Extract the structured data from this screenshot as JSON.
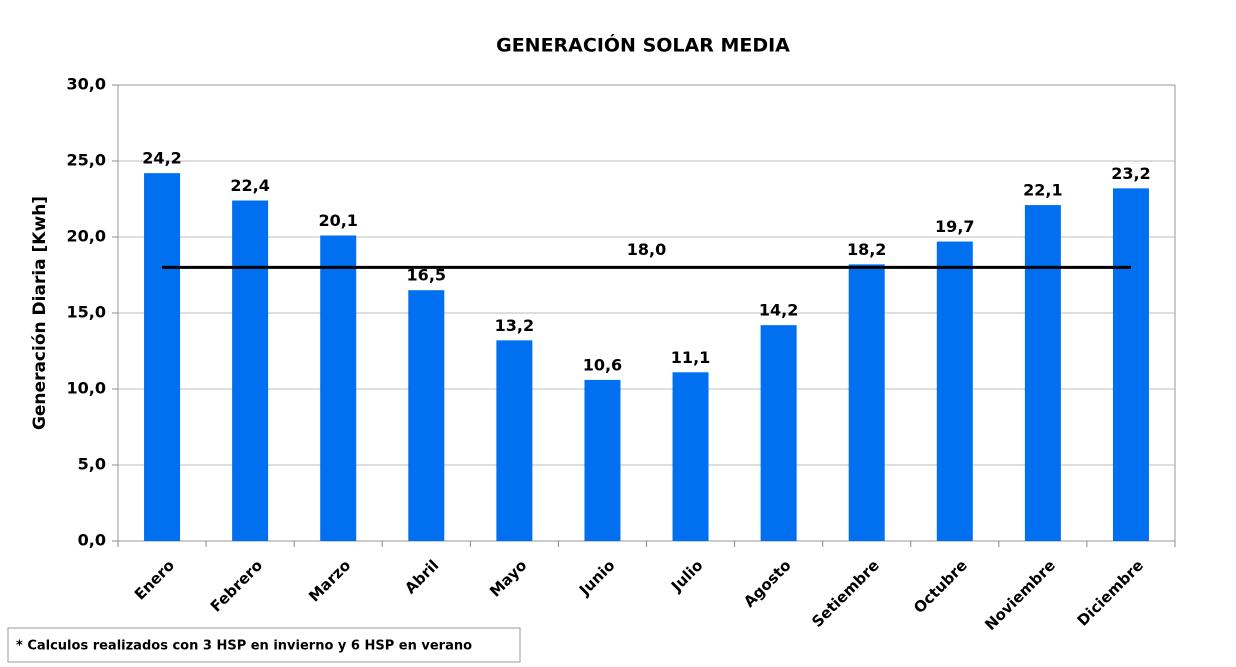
{
  "chart_data": {
    "type": "bar",
    "title": "GENERACIÓN SOLAR MEDIA",
    "y_label": "Generación Diaria [Kwh]",
    "categories": [
      "Enero",
      "Febrero",
      "Marzo",
      "Abril",
      "Mayo",
      "Junio",
      "Julio",
      "Agosto",
      "Setiembre",
      "Octubre",
      "Noviembre",
      "Diciembre"
    ],
    "values": [
      24.2,
      22.4,
      20.1,
      16.5,
      13.2,
      10.6,
      11.1,
      14.2,
      18.2,
      19.7,
      22.1,
      23.2
    ],
    "value_labels": [
      "24,2",
      "22,4",
      "20,1",
      "16,5",
      "13,2",
      "10,6",
      "11,1",
      "14,2",
      "18,2",
      "19,7",
      "22,1",
      "23,2"
    ],
    "color": "#0070f0",
    "ylim": [
      0,
      30
    ],
    "yticks": [
      {
        "value": 0,
        "label": "0,0"
      },
      {
        "value": 5,
        "label": "5,0"
      },
      {
        "value": 10,
        "label": "10,0"
      },
      {
        "value": 15,
        "label": "15,0"
      },
      {
        "value": 20,
        "label": "20,0"
      },
      {
        "value": 25,
        "label": "25,0"
      },
      {
        "value": 30,
        "label": "30,0"
      }
    ],
    "grid": true,
    "reference_line": {
      "value": 18,
      "label": "18,0",
      "color": "#000000"
    },
    "annotation": "* Calculos realizados con 3 HSP en invierno y 6 HSP en verano"
  }
}
